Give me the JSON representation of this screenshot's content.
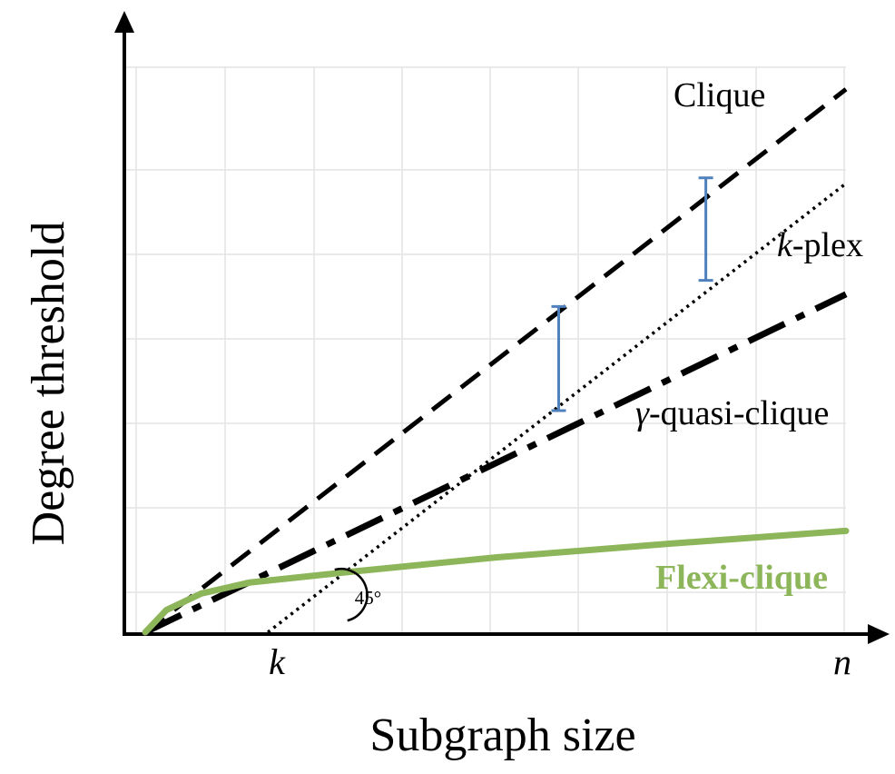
{
  "chart_data": {
    "type": "line",
    "xlabel": "Subgraph size",
    "ylabel": "Degree threshold",
    "x_ticks": [
      "k",
      "n"
    ],
    "x_range": [
      0,
      1
    ],
    "y_range": [
      0,
      1
    ],
    "grid": true,
    "angle_annotation": "45°",
    "series": [
      {
        "name": "Clique",
        "style": "dashed",
        "color": "#000000",
        "points": [
          [
            0,
            0
          ],
          [
            1,
            0.98
          ]
        ]
      },
      {
        "name": "k-plex",
        "name_italic": "k",
        "name_rest": "-plex",
        "style": "dotted",
        "color": "#000000",
        "points": [
          [
            0.175,
            0
          ],
          [
            1,
            0.81
          ]
        ]
      },
      {
        "name": "γ-quasi-clique",
        "name_italic": "γ",
        "name_rest": "-quasi-clique",
        "style": "dash-dot",
        "color": "#000000",
        "points": [
          [
            0,
            0
          ],
          [
            1,
            0.61
          ]
        ]
      },
      {
        "name": "Flexi-clique",
        "style": "solid",
        "color": "#8db55a",
        "points": [
          [
            0,
            0
          ],
          [
            0.03,
            0.04
          ],
          [
            0.08,
            0.07
          ],
          [
            0.15,
            0.09
          ],
          [
            0.3,
            0.11
          ],
          [
            0.5,
            0.135
          ],
          [
            0.75,
            0.16
          ],
          [
            1,
            0.183
          ]
        ]
      }
    ],
    "error_bars": [
      {
        "x": 0.59,
        "y_low": 0.4,
        "y_high": 0.588,
        "color": "#4f81bd"
      },
      {
        "x": 0.8,
        "y_low": 0.635,
        "y_high": 0.82,
        "color": "#4f81bd"
      }
    ]
  }
}
